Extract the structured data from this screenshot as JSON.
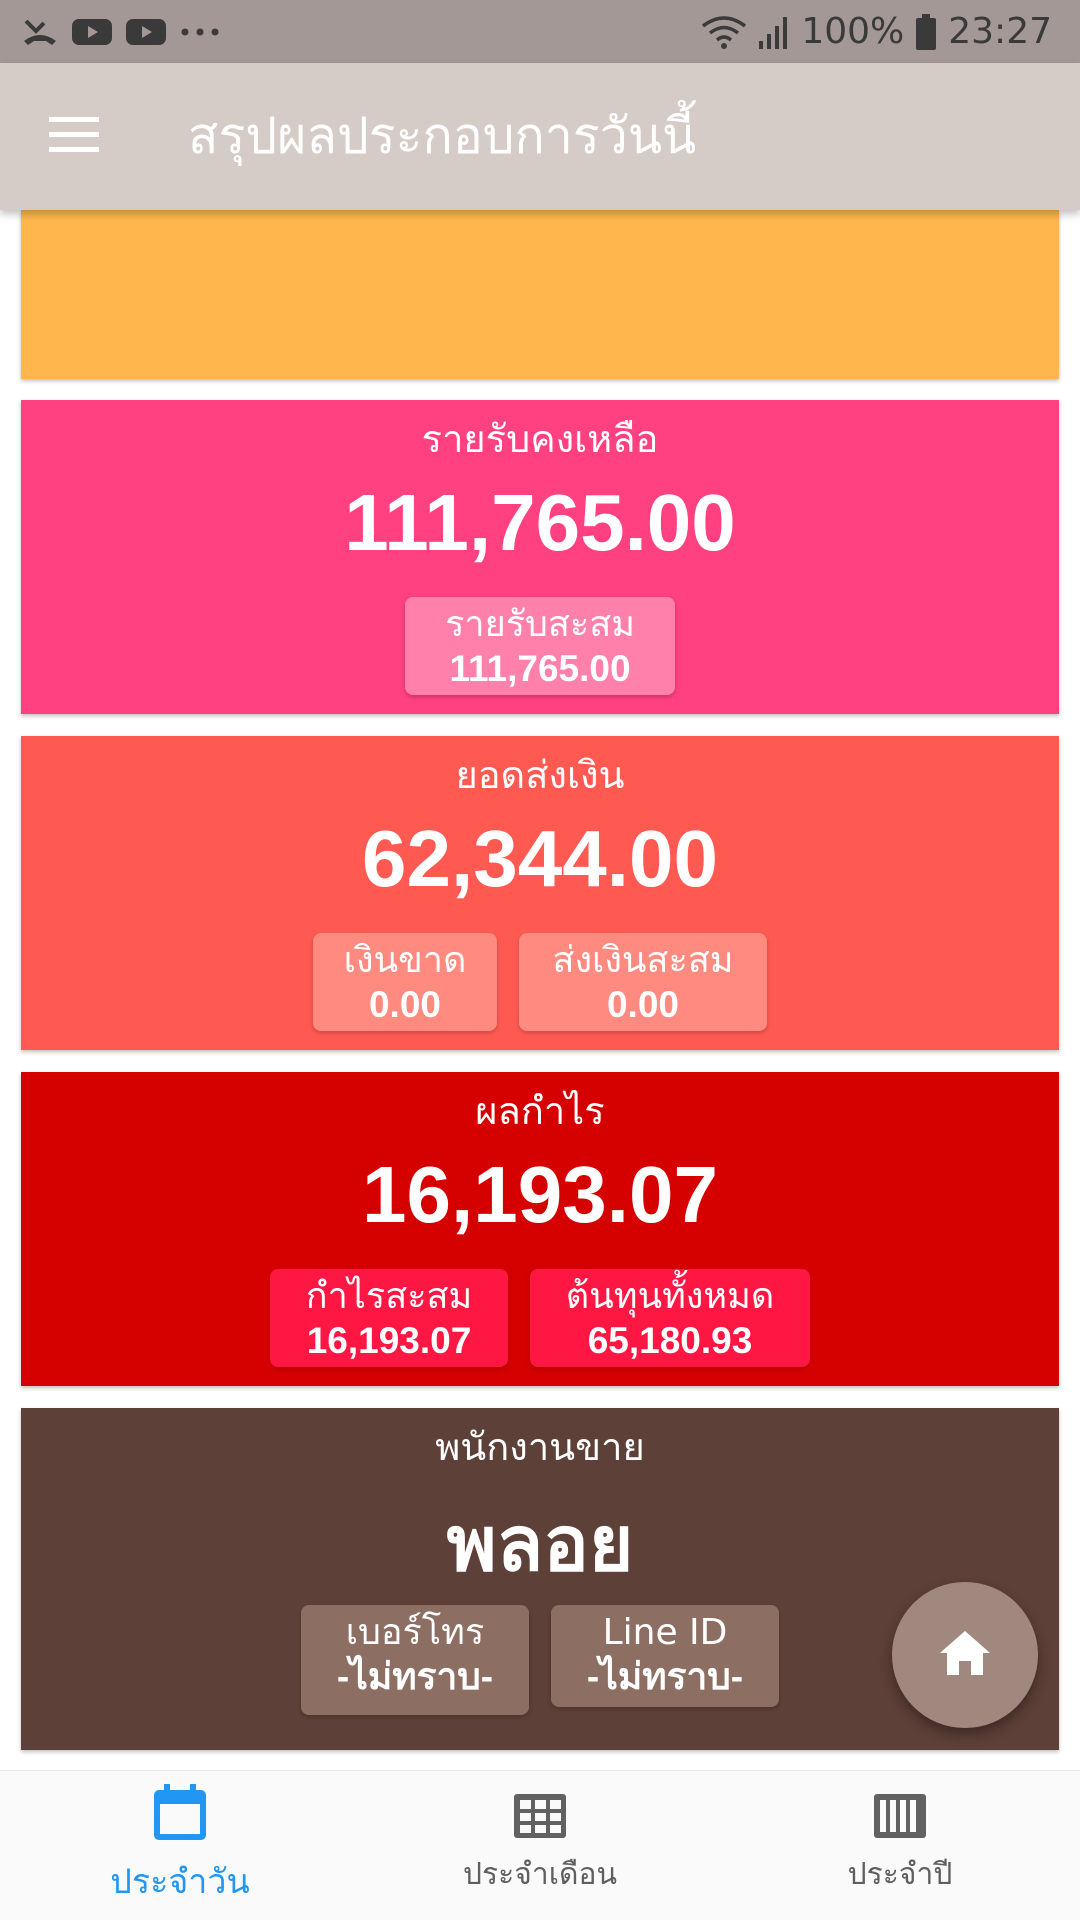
{
  "status_bar": {
    "battery": "100%",
    "time": "23:27",
    "icons": [
      "missed-call-icon",
      "youtube-icon",
      "youtube-icon",
      "more-icon",
      "wifi-icon",
      "signal-icon",
      "battery-icon"
    ]
  },
  "appbar": {
    "title": "สรุปผลประกอบการวันนี้",
    "menu_icon": "hamburger-menu-icon"
  },
  "cards": {
    "top_partial": {
      "color": "#ffb74d"
    },
    "remaining_income": {
      "label": "รายรับคงเหลือ",
      "value": "111,765.00",
      "color": "#ff4081",
      "sub": [
        {
          "label": "รายรับสะสม",
          "value": "111,765.00"
        }
      ]
    },
    "remittance": {
      "label": "ยอดส่งเงิน",
      "value": "62,344.00",
      "color": "#ff5a52",
      "sub": [
        {
          "label": "เงินขาด",
          "value": "0.00"
        },
        {
          "label": "ส่งเงินสะสม",
          "value": "0.00"
        }
      ]
    },
    "profit": {
      "label": "ผลกำไร",
      "value": "16,193.07",
      "color": "#d50000",
      "sub": [
        {
          "label": "กำไรสะสม",
          "value": "16,193.07"
        },
        {
          "label": "ต้นทุนทั้งหมด",
          "value": "65,180.93"
        }
      ]
    },
    "salesperson": {
      "label": "พนักงานขาย",
      "value": "พลอย",
      "color": "#5d4037",
      "sub": [
        {
          "label": "เบอร์โทร",
          "value": "-ไม่ทราบ-"
        },
        {
          "label": "Line ID",
          "value": "-ไม่ทราบ-"
        }
      ]
    }
  },
  "fab": {
    "icon": "home-icon"
  },
  "bottom_nav": {
    "items": [
      {
        "label": "ประจำวัน",
        "icon": "calendar-icon",
        "active": true
      },
      {
        "label": "ประจำเดือน",
        "icon": "grid-icon",
        "active": false
      },
      {
        "label": "ประจำปี",
        "icon": "columns-icon",
        "active": false
      }
    ]
  }
}
